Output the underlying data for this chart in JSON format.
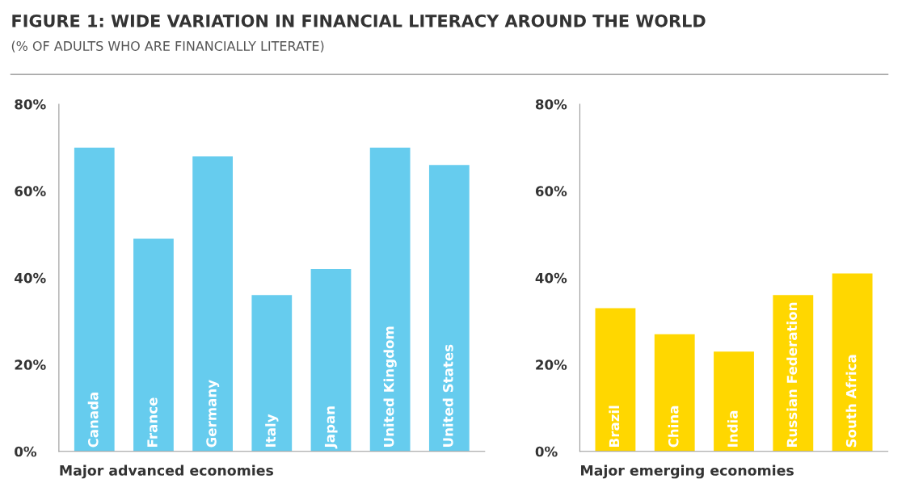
{
  "chart_data": [
    {
      "type": "bar",
      "title": "FIGURE 1: WIDE VARIATION IN FINANCIAL LITERACY AROUND THE WORLD",
      "subtitle": "(% OF ADULTS WHO ARE FINANCIALLY LITERATE)",
      "xlabel": "Major advanced economies",
      "categories": [
        "Canada",
        "France",
        "Germany",
        "Italy",
        "Japan",
        "United Kingdom",
        "United States"
      ],
      "values": [
        70,
        49,
        68,
        36,
        42,
        70,
        66
      ],
      "color": "#66ccee",
      "ylim": [
        0,
        80
      ],
      "yticks": [
        {
          "value": 0,
          "label": "0%"
        },
        {
          "value": 20,
          "label": "20%"
        },
        {
          "value": 40,
          "label": "40%"
        },
        {
          "value": 60,
          "label": "60%"
        },
        {
          "value": 80,
          "label": "80%"
        }
      ],
      "grid": false
    },
    {
      "type": "bar",
      "xlabel": "Major emerging economies",
      "categories": [
        "Brazil",
        "China",
        "India",
        "Russian Federation",
        "South Africa"
      ],
      "values": [
        33,
        27,
        23,
        36,
        41
      ],
      "color": "#ffd700",
      "ylim": [
        0,
        80
      ],
      "yticks": [
        {
          "value": 0,
          "label": "0%"
        },
        {
          "value": 20,
          "label": "20%"
        },
        {
          "value": 40,
          "label": "40%"
        },
        {
          "value": 60,
          "label": "60%"
        },
        {
          "value": 80,
          "label": "80%"
        }
      ],
      "grid": false
    }
  ]
}
